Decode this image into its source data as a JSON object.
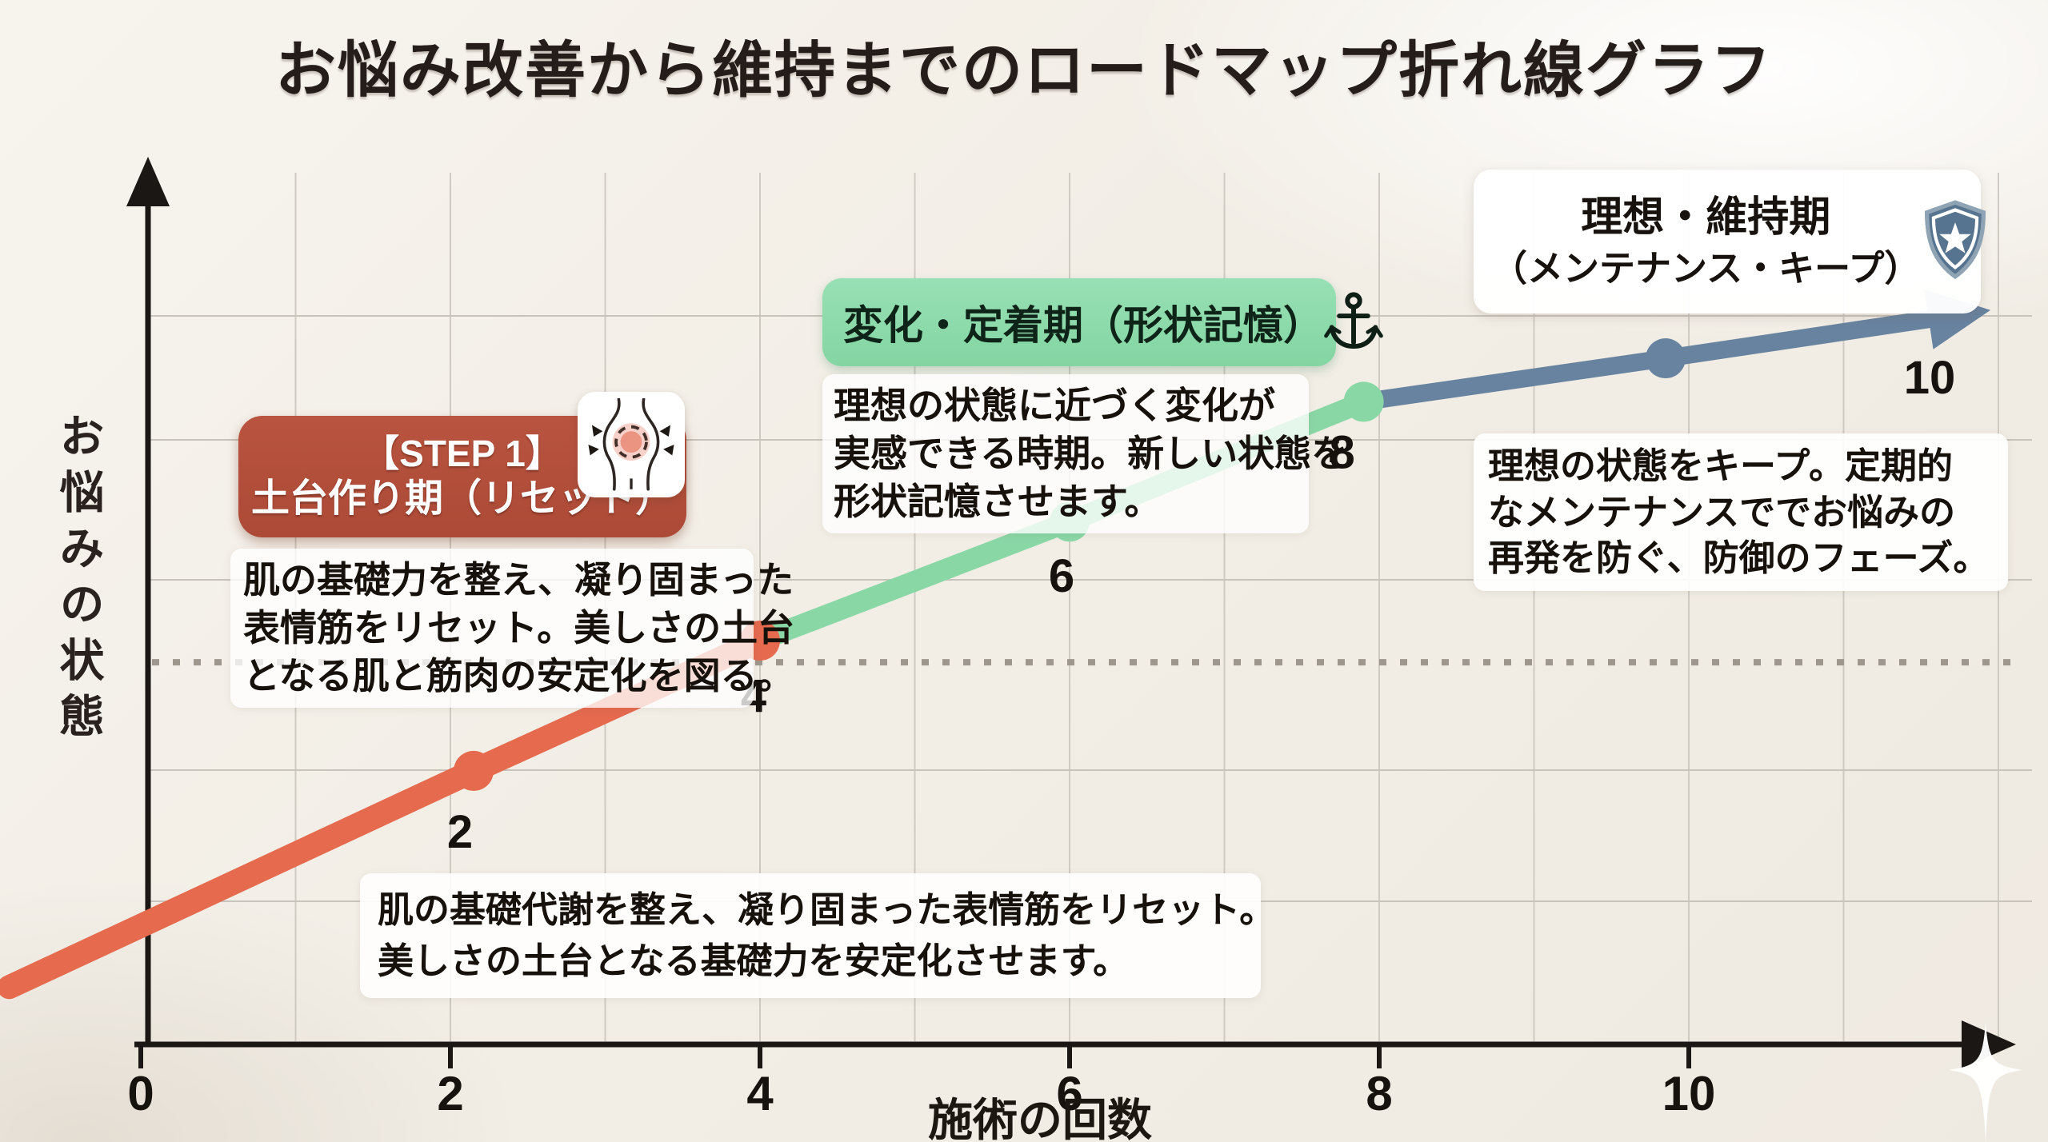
{
  "title": "お悩み改善から維持までのロードマップ折れ線グラフ",
  "axes": {
    "y_label": "お悩みの状態",
    "x_label": "施術の回数"
  },
  "phases": {
    "step1": {
      "heading_line1": "【STEP 1】",
      "heading_line2": "土台作り期（リセット）",
      "icon": "torso-reset-icon",
      "color": "#b14e3a",
      "desc_lines": [
        "肌の基礎力を整え、凝り固まった",
        "表情筋をリセット。美しさの土台",
        "となる肌と筋肉の安定化を図る。"
      ]
    },
    "step2": {
      "heading": "変化・定着期（形状記憶）",
      "icon": "anchor-icon",
      "color": "#8cdbaa",
      "desc_lines": [
        "理想の状態に近づく変化が",
        "実感できる時期。新しい状態を",
        "形状記憶させます。"
      ]
    },
    "step3": {
      "heading_line1": "理想・維持期",
      "heading_line2": "（メンテナンス・キープ）",
      "icon": "shield-star-icon",
      "color": "#5d7d99",
      "desc_lines": [
        "理想の状態をキープ。定期的",
        "なメンテナンスででお悩みの",
        "再発を防ぐ、防御のフェーズ。"
      ]
    }
  },
  "bottom_note_lines": [
    "肌の基礎代謝を整え、凝り固まった表情筋をリセット。",
    "美しさの土台となる基礎力を安定化させます。"
  ],
  "chart_data": {
    "type": "line",
    "title": "お悩み改善から維持までのロードマップ折れ線グラフ",
    "xlabel": "施術の回数",
    "ylabel": "お悩みの状態",
    "x_ticks": [
      0,
      2,
      4,
      6,
      8,
      10
    ],
    "xlim": [
      0,
      12
    ],
    "ylim": [
      0,
      10
    ],
    "grid": true,
    "legend": false,
    "y_axis_qualitative": true,
    "threshold": {
      "y": 4.4,
      "style": "dotted"
    },
    "series": [
      {
        "name": "土台作り期（リセット）",
        "color": "#e56a4e",
        "points": [
          [
            -0.85,
            0.66
          ],
          [
            2.15,
            3.15
          ],
          [
            4.0,
            4.65
          ]
        ],
        "labels": [
          null,
          "2",
          "4"
        ]
      },
      {
        "name": "変化・定着期（形状記憶）",
        "color": "#8ad7a6",
        "points": [
          [
            4.0,
            4.65
          ],
          [
            6.0,
            6.02
          ],
          [
            7.9,
            7.4
          ]
        ],
        "labels": [
          null,
          "6",
          "8"
        ]
      },
      {
        "name": "理想・維持期（メンテナンス・キープ）",
        "color": "#68839f",
        "points": [
          [
            7.9,
            7.4
          ],
          [
            9.85,
            7.9
          ],
          [
            11.55,
            8.35
          ]
        ],
        "labels": [
          null,
          "10",
          null
        ],
        "arrow_end": true
      }
    ]
  }
}
